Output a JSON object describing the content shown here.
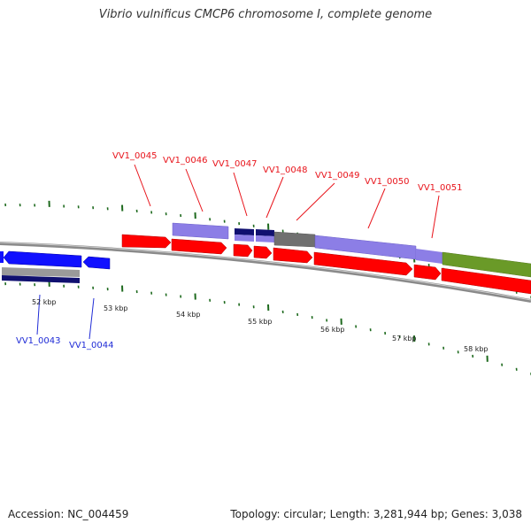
{
  "title": "Vibrio vulnificus CMCP6 chromosome I, complete genome",
  "footer": {
    "accession": "Accession: NC_004459",
    "topology": "Topology: circular; Length: 3,281,944 bp; Genes: 3,038"
  },
  "colors": {
    "forward_label": "#e8141b",
    "reverse_label": "#1f2bd6",
    "cds_red": "#ff0000",
    "cds_blue": "#1010ff",
    "lavender": "#8c7ee6",
    "navy": "#101070",
    "gray": "#707070",
    "olive": "#6a9a28",
    "tick_green": "#1e6a1e",
    "backbone": "#8a8a8a"
  },
  "gene_labels": [
    {
      "name": "VV1_0043",
      "strand": "reverse"
    },
    {
      "name": "VV1_0044",
      "strand": "reverse"
    },
    {
      "name": "VV1_0045",
      "strand": "forward"
    },
    {
      "name": "VV1_0046",
      "strand": "forward"
    },
    {
      "name": "VV1_0047",
      "strand": "forward"
    },
    {
      "name": "VV1_0048",
      "strand": "forward"
    },
    {
      "name": "VV1_0049",
      "strand": "forward"
    },
    {
      "name": "VV1_0050",
      "strand": "forward"
    },
    {
      "name": "VV1_0051",
      "strand": "forward"
    }
  ],
  "scale_labels": [
    "52 kbp",
    "53 kbp",
    "54 kbp",
    "55 kbp",
    "56 kbp",
    "57 kbp",
    "58 kbp"
  ]
}
